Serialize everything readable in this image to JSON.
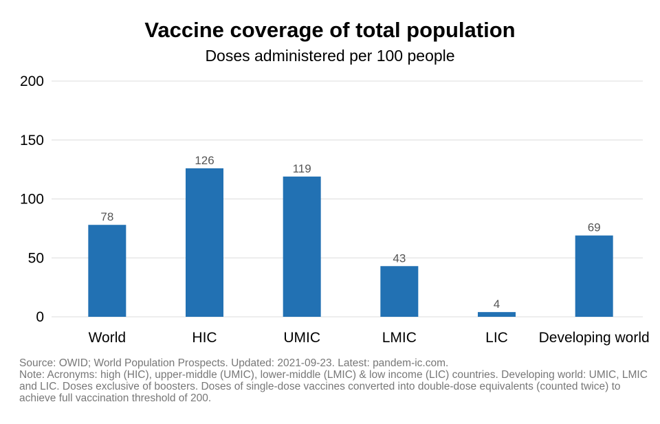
{
  "chart_data": {
    "type": "bar",
    "title": "Vaccine coverage of total population",
    "subtitle": "Doses administered per 100 people",
    "categories": [
      "World",
      "HIC",
      "UMIC",
      "LMIC",
      "LIC",
      "Developing world"
    ],
    "values": [
      78,
      126,
      119,
      43,
      4,
      69
    ],
    "data_labels": [
      "78",
      "126",
      "119",
      "43",
      "4",
      "69"
    ],
    "ylim": [
      0,
      200
    ],
    "yticks": [
      0,
      50,
      100,
      150,
      200
    ],
    "ytick_labels": [
      "0",
      "50",
      "100",
      "150",
      "200"
    ],
    "grid": true,
    "bar_color": "#2271b3",
    "xlabel": "",
    "ylabel": ""
  },
  "footer": {
    "source": "Source: OWID; World Population Prospects. Updated: 2021-09-23. Latest: pandem-ic.com.",
    "note": "Note: Acronyms: high (HIC), upper-middle (UMIC), lower-middle (LMIC) & low income (LIC) countries. Developing world: UMIC, LMIC and LIC. Doses exclusive of boosters. Doses of single-dose vaccines converted into double-dose equivalents (counted twice) to achieve full vaccination threshold of 200."
  }
}
